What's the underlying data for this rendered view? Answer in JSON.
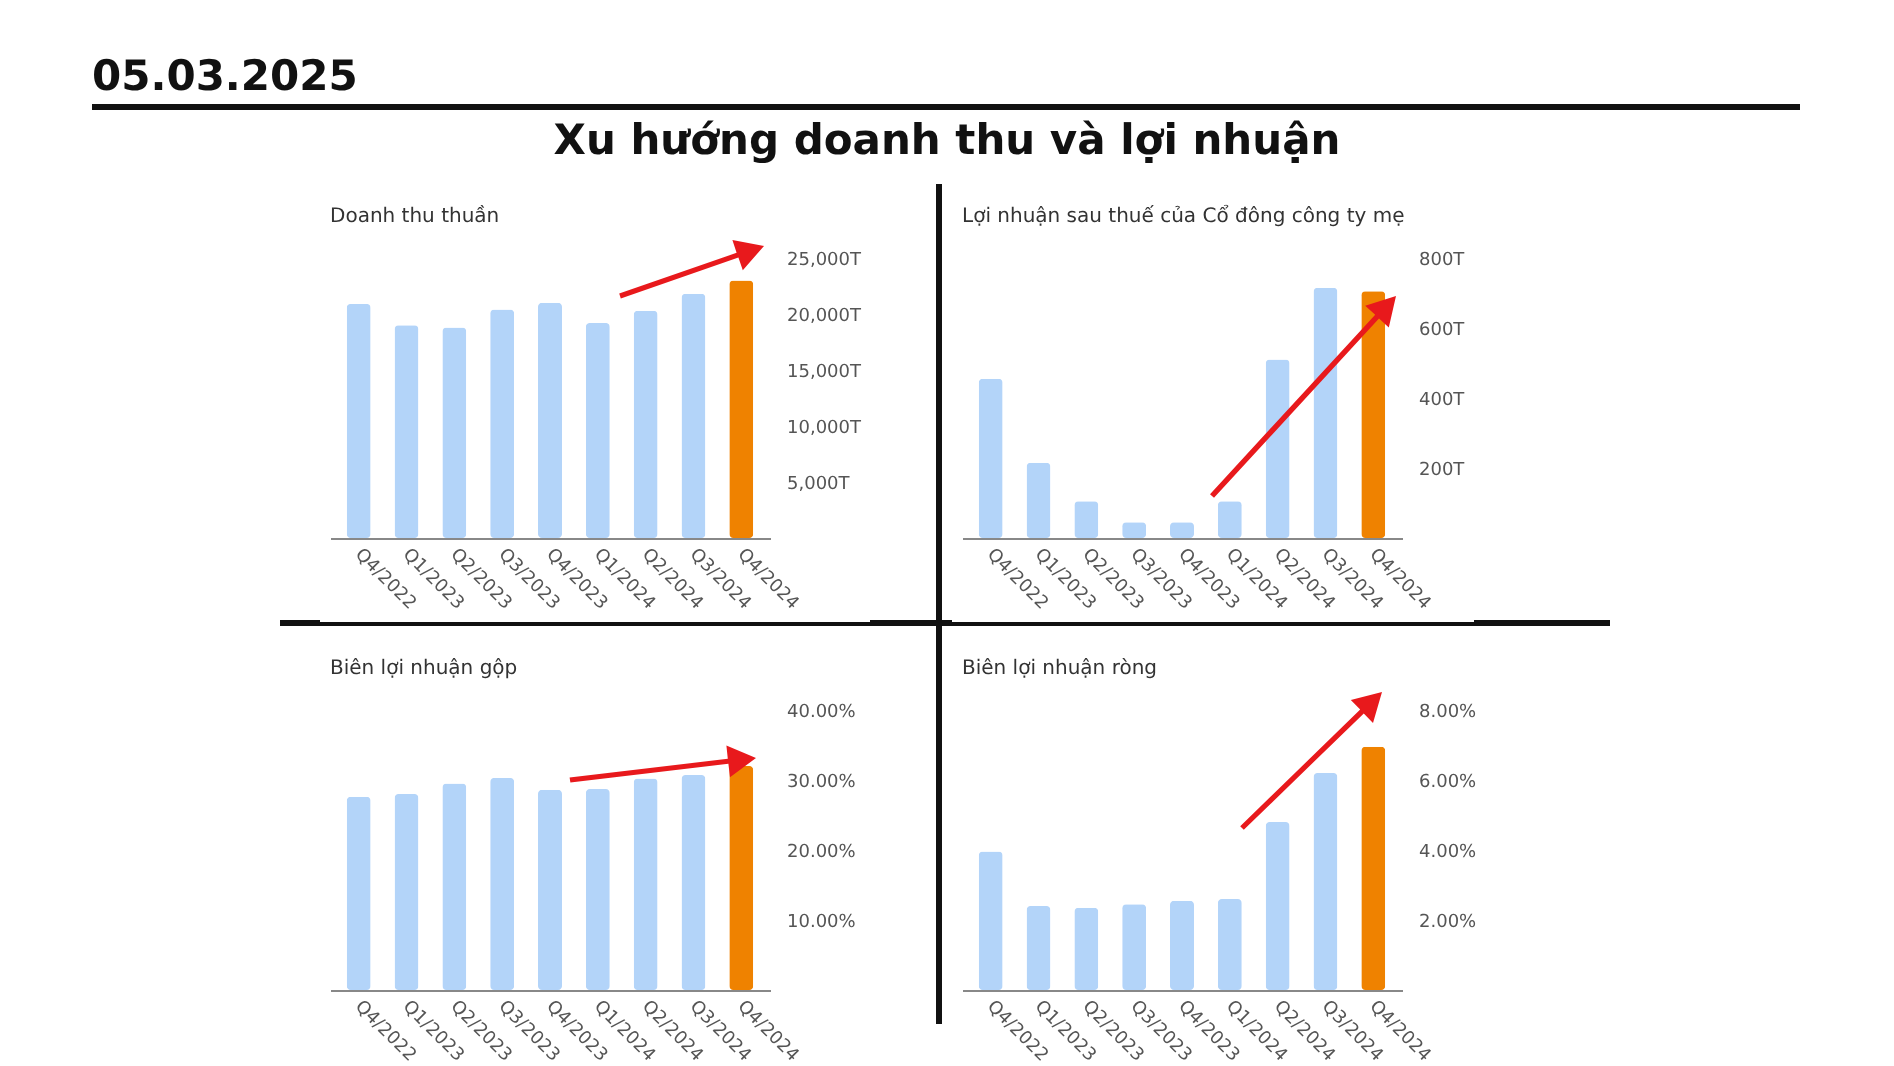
{
  "chart_data": [
    {
      "type": "other",
      "title": "Xu hướng doanh thu và lợi nhuận",
      "annotations": [
        "05.03.2025"
      ]
    },
    {
      "type": "bar",
      "title": "Doanh thu thuần",
      "categories": [
        "Q4/2022",
        "Q1/2023",
        "Q2/2023",
        "Q3/2023",
        "Q4/2023",
        "Q1/2024",
        "Q2/2024",
        "Q3/2024",
        "Q4/2024"
      ],
      "values": [
        20900,
        19000,
        18800,
        20400,
        21000,
        19200,
        20300,
        21800,
        23000
      ],
      "colors": [
        "#b3d4f9",
        "#b3d4f9",
        "#b3d4f9",
        "#b3d4f9",
        "#b3d4f9",
        "#b3d4f9",
        "#b3d4f9",
        "#b3d4f9",
        "#ef8200"
      ],
      "ylim": [
        0,
        25000
      ],
      "yticks": [
        {
          "value": 5000,
          "label": "5,000T"
        },
        {
          "value": 10000,
          "label": "10,000T"
        },
        {
          "value": 15000,
          "label": "15,000T"
        },
        {
          "value": 20000,
          "label": "20,000T"
        },
        {
          "value": 25000,
          "label": "25,000T"
        }
      ]
    },
    {
      "type": "bar",
      "title": "Lợi nhuận sau thuế của Cổ đông công ty mẹ",
      "categories": [
        "Q4/2022",
        "Q1/2023",
        "Q2/2023",
        "Q3/2023",
        "Q4/2023",
        "Q1/2024",
        "Q2/2024",
        "Q3/2024",
        "Q4/2024"
      ],
      "values": [
        455,
        215,
        105,
        45,
        45,
        105,
        510,
        715,
        705
      ],
      "colors": [
        "#b3d4f9",
        "#b3d4f9",
        "#b3d4f9",
        "#b3d4f9",
        "#b3d4f9",
        "#b3d4f9",
        "#b3d4f9",
        "#b3d4f9",
        "#ef8200"
      ],
      "ylim": [
        0,
        800
      ],
      "yticks": [
        {
          "value": 200,
          "label": "200T"
        },
        {
          "value": 400,
          "label": "400T"
        },
        {
          "value": 600,
          "label": "600T"
        },
        {
          "value": 800,
          "label": "800T"
        }
      ]
    },
    {
      "type": "bar",
      "title": "Biên lợi nhuận gộp",
      "categories": [
        "Q4/2022",
        "Q1/2023",
        "Q2/2023",
        "Q3/2023",
        "Q4/2023",
        "Q1/2024",
        "Q2/2024",
        "Q3/2024",
        "Q4/2024"
      ],
      "values": [
        27.6,
        28.0,
        29.5,
        30.3,
        28.6,
        28.7,
        30.2,
        30.7,
        32.0
      ],
      "colors": [
        "#b3d4f9",
        "#b3d4f9",
        "#b3d4f9",
        "#b3d4f9",
        "#b3d4f9",
        "#b3d4f9",
        "#b3d4f9",
        "#b3d4f9",
        "#ef8200"
      ],
      "ylim": [
        0,
        40
      ],
      "yticks": [
        {
          "value": 10,
          "label": "10.00%"
        },
        {
          "value": 20,
          "label": "20.00%"
        },
        {
          "value": 30,
          "label": "30.00%"
        },
        {
          "value": 40,
          "label": "40.00%"
        }
      ]
    },
    {
      "type": "bar",
      "title": "Biên lợi nhuận ròng",
      "categories": [
        "Q4/2022",
        "Q1/2023",
        "Q2/2023",
        "Q3/2023",
        "Q4/2023",
        "Q1/2024",
        "Q2/2024",
        "Q3/2024",
        "Q4/2024"
      ],
      "values": [
        3.96,
        2.4,
        2.35,
        2.45,
        2.55,
        2.6,
        4.8,
        6.2,
        6.95
      ],
      "colors": [
        "#b3d4f9",
        "#b3d4f9",
        "#b3d4f9",
        "#b3d4f9",
        "#b3d4f9",
        "#b3d4f9",
        "#b3d4f9",
        "#b3d4f9",
        "#ef8200"
      ],
      "ylim": [
        0,
        8
      ],
      "yticks": [
        {
          "value": 2,
          "label": "2.00%"
        },
        {
          "value": 4,
          "label": "4.00%"
        },
        {
          "value": 6,
          "label": "6.00%"
        },
        {
          "value": 8,
          "label": "8.00%"
        }
      ]
    }
  ]
}
